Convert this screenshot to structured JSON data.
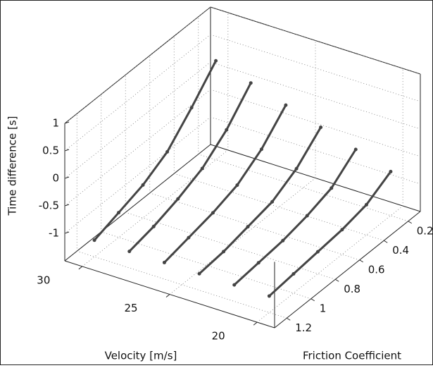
{
  "chart_data": {
    "type": "surface3d",
    "xlabel": "Velocity [m/s]",
    "ylabel": "Friction Coefficient",
    "zlabel": "Time difference [s]",
    "x": [
      20,
      22,
      24,
      26,
      28,
      30
    ],
    "y": [
      0.2,
      0.4,
      0.6,
      0.8,
      1.0,
      1.2
    ],
    "z": [
      [
        -0.7,
        -0.95,
        -1.05,
        -1.1,
        -1.15,
        -1.2
      ],
      [
        -0.5,
        -0.85,
        -1.0,
        -1.1,
        -1.15,
        -1.2
      ],
      [
        -0.3,
        -0.7,
        -0.95,
        -1.05,
        -1.15,
        -1.2
      ],
      [
        -0.1,
        -0.55,
        -0.85,
        -1.0,
        -1.1,
        -1.2
      ],
      [
        0.1,
        -0.4,
        -0.75,
        -0.95,
        -1.1,
        -1.2
      ],
      [
        0.3,
        -0.2,
        -0.65,
        -0.9,
        -1.05,
        -1.2
      ]
    ],
    "color": "#444444",
    "xlim": [
      19,
      31
    ],
    "xticks": [
      20,
      25,
      30
    ],
    "ylim": [
      0.1,
      1.3
    ],
    "yticks": [
      0.2,
      0.4,
      0.6,
      0.8,
      1,
      1.2
    ],
    "zlim": [
      -1.5,
      1
    ],
    "zticks": [
      -1,
      -0.5,
      0,
      0.5,
      1
    ],
    "grid": true
  }
}
